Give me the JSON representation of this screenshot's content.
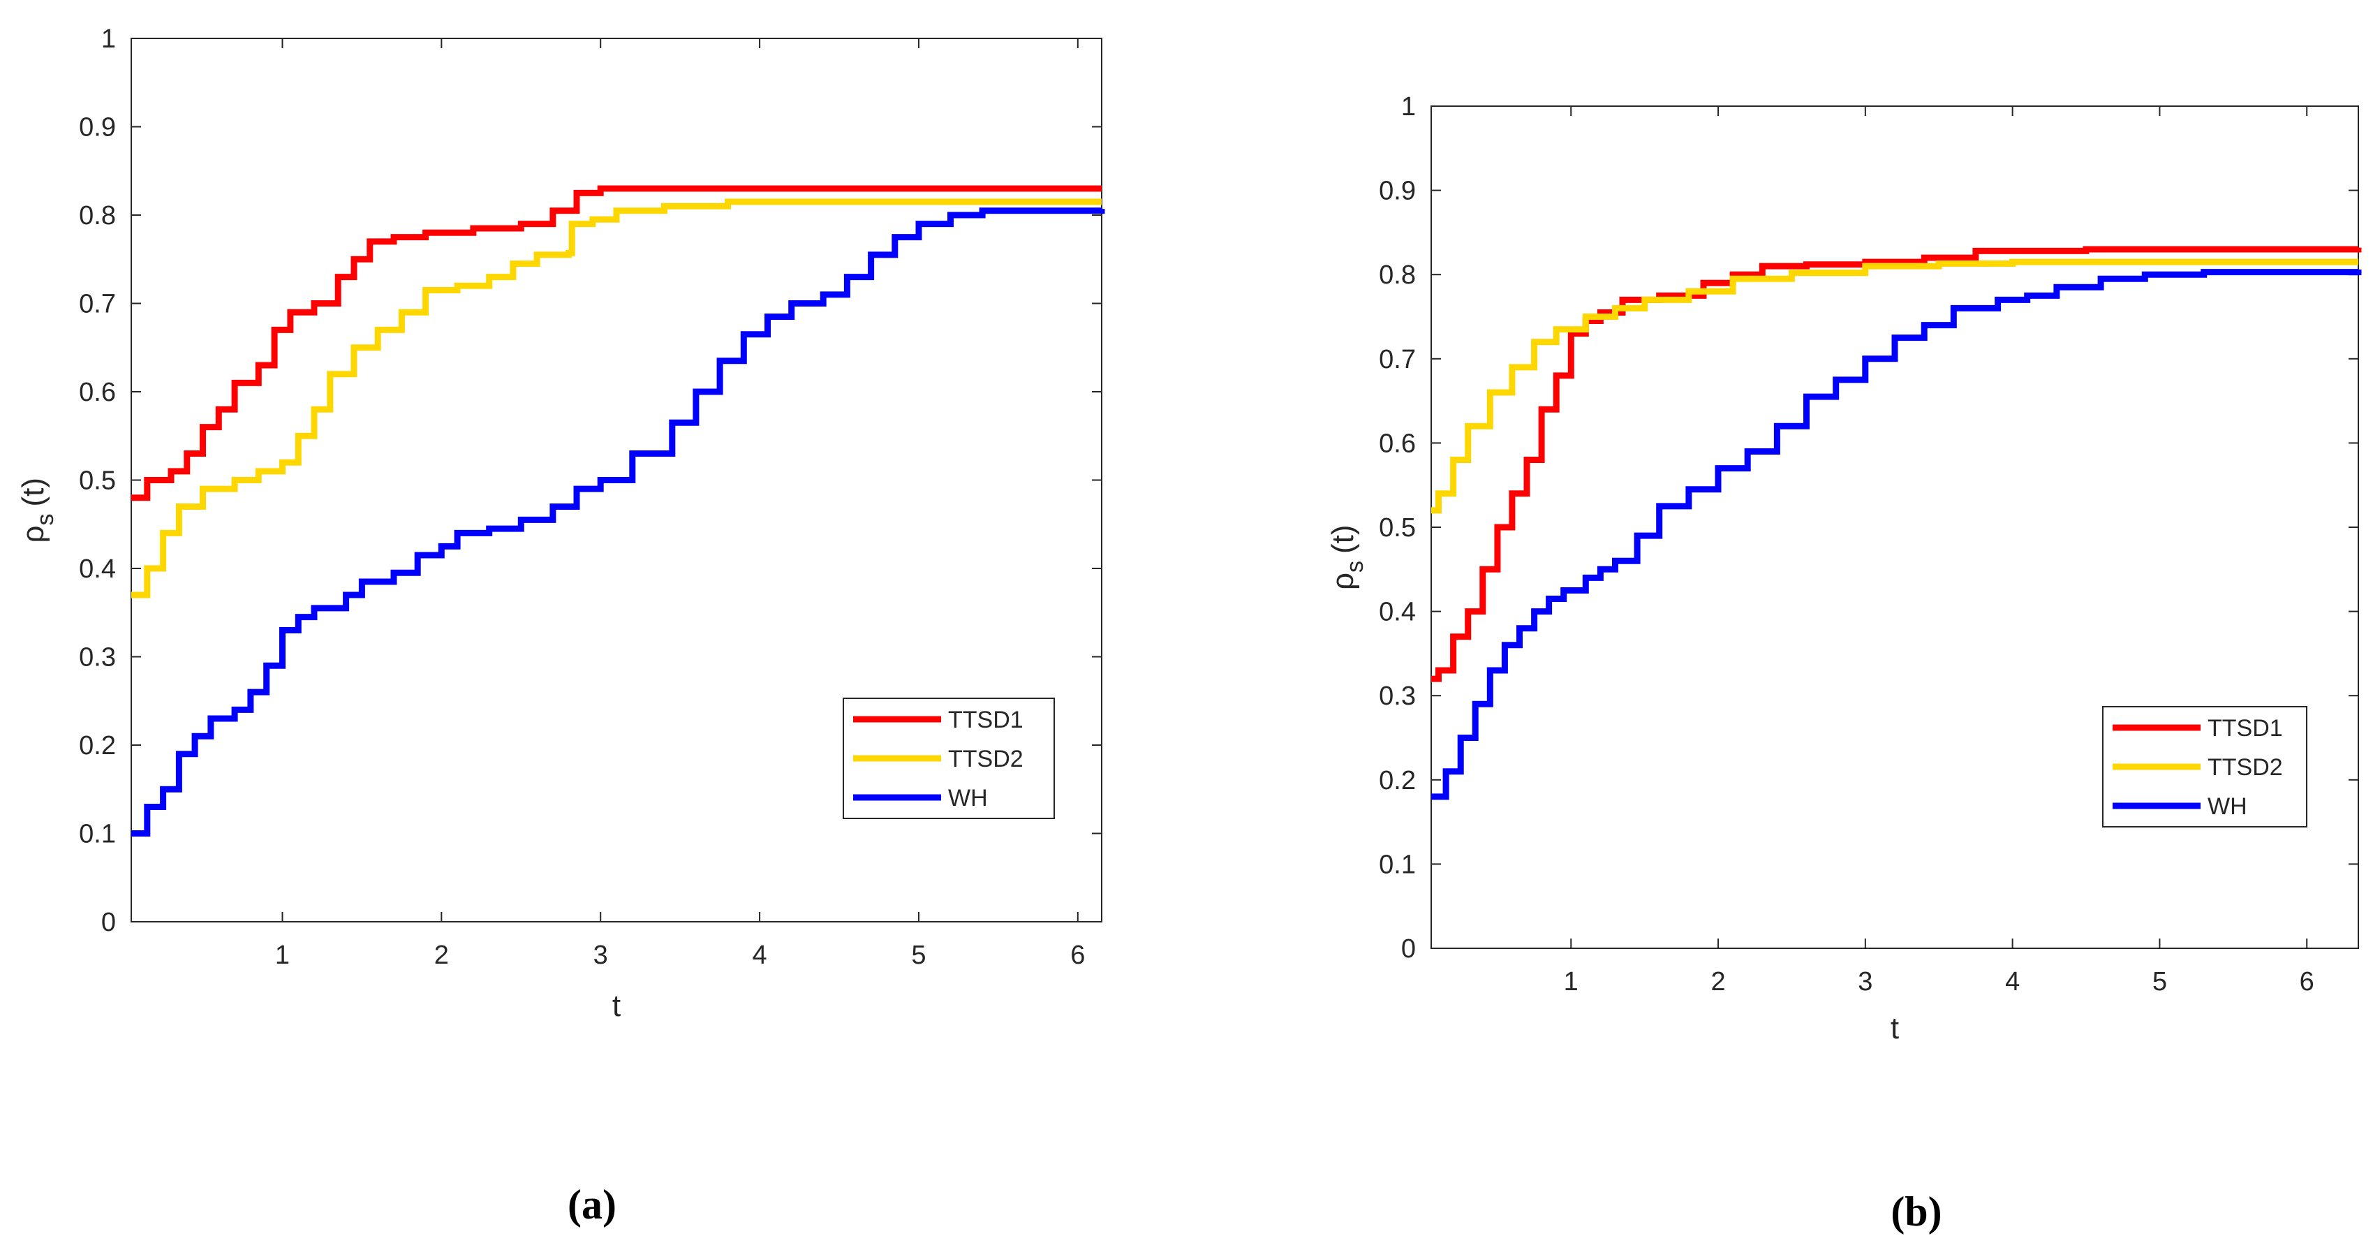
{
  "chart_data": [
    {
      "type": "line",
      "panel": "a",
      "caption": "(a)",
      "xlabel": "t",
      "ylabel": "ρ",
      "ylabel_sub": "s",
      "ylabel_arg": "(t)",
      "xlim": [
        0.05,
        6.15
      ],
      "ylim": [
        0,
        1
      ],
      "xticks": [
        "1",
        "2",
        "3",
        "4",
        "5",
        "6"
      ],
      "yticks": [
        "0",
        "0.1",
        "0.2",
        "0.3",
        "0.4",
        "0.5",
        "0.6",
        "0.7",
        "0.8",
        "0.9",
        "1"
      ],
      "legend_position": "lower-right",
      "series": [
        {
          "name": "TTSD1",
          "color": "#ff0000",
          "points": [
            [
              0.05,
              0.48
            ],
            [
              0.15,
              0.5
            ],
            [
              0.3,
              0.51
            ],
            [
              0.4,
              0.53
            ],
            [
              0.5,
              0.56
            ],
            [
              0.6,
              0.58
            ],
            [
              0.7,
              0.61
            ],
            [
              0.85,
              0.63
            ],
            [
              0.95,
              0.67
            ],
            [
              1.05,
              0.69
            ],
            [
              1.2,
              0.7
            ],
            [
              1.35,
              0.73
            ],
            [
              1.45,
              0.75
            ],
            [
              1.55,
              0.77
            ],
            [
              1.7,
              0.775
            ],
            [
              1.9,
              0.78
            ],
            [
              2.2,
              0.785
            ],
            [
              2.5,
              0.79
            ],
            [
              2.7,
              0.805
            ],
            [
              2.85,
              0.825
            ],
            [
              3.0,
              0.83
            ],
            [
              6.15,
              0.83
            ]
          ]
        },
        {
          "name": "TTSD2",
          "color": "#ffd700",
          "points": [
            [
              0.05,
              0.37
            ],
            [
              0.15,
              0.4
            ],
            [
              0.25,
              0.44
            ],
            [
              0.35,
              0.47
            ],
            [
              0.5,
              0.49
            ],
            [
              0.7,
              0.5
            ],
            [
              0.85,
              0.51
            ],
            [
              1.0,
              0.52
            ],
            [
              1.1,
              0.55
            ],
            [
              1.2,
              0.58
            ],
            [
              1.3,
              0.62
            ],
            [
              1.45,
              0.65
            ],
            [
              1.6,
              0.67
            ],
            [
              1.75,
              0.69
            ],
            [
              1.9,
              0.715
            ],
            [
              2.1,
              0.72
            ],
            [
              2.3,
              0.73
            ],
            [
              2.45,
              0.745
            ],
            [
              2.6,
              0.755
            ],
            [
              2.8,
              0.757
            ],
            [
              2.82,
              0.79
            ],
            [
              2.95,
              0.795
            ],
            [
              3.1,
              0.805
            ],
            [
              3.4,
              0.81
            ],
            [
              3.8,
              0.815
            ],
            [
              6.15,
              0.815
            ]
          ]
        },
        {
          "name": "WH",
          "color": "#0000ff",
          "points": [
            [
              0.05,
              0.1
            ],
            [
              0.15,
              0.13
            ],
            [
              0.25,
              0.15
            ],
            [
              0.35,
              0.19
            ],
            [
              0.45,
              0.21
            ],
            [
              0.55,
              0.23
            ],
            [
              0.7,
              0.24
            ],
            [
              0.8,
              0.26
            ],
            [
              0.9,
              0.29
            ],
            [
              1.0,
              0.33
            ],
            [
              1.1,
              0.345
            ],
            [
              1.2,
              0.355
            ],
            [
              1.4,
              0.37
            ],
            [
              1.5,
              0.385
            ],
            [
              1.7,
              0.395
            ],
            [
              1.85,
              0.415
            ],
            [
              2.0,
              0.425
            ],
            [
              2.1,
              0.44
            ],
            [
              2.3,
              0.445
            ],
            [
              2.5,
              0.455
            ],
            [
              2.7,
              0.47
            ],
            [
              2.85,
              0.49
            ],
            [
              3.0,
              0.5
            ],
            [
              3.2,
              0.53
            ],
            [
              3.45,
              0.565
            ],
            [
              3.6,
              0.6
            ],
            [
              3.75,
              0.635
            ],
            [
              3.9,
              0.665
            ],
            [
              4.05,
              0.685
            ],
            [
              4.2,
              0.7
            ],
            [
              4.4,
              0.71
            ],
            [
              4.55,
              0.73
            ],
            [
              4.7,
              0.755
            ],
            [
              4.85,
              0.775
            ],
            [
              5.0,
              0.79
            ],
            [
              5.2,
              0.8
            ],
            [
              5.4,
              0.805
            ],
            [
              6.15,
              0.807
            ]
          ]
        }
      ]
    },
    {
      "type": "line",
      "panel": "b",
      "caption": "(b)",
      "xlabel": "t",
      "ylabel": "ρ",
      "ylabel_sub": "s",
      "ylabel_arg": "(t)",
      "xlim": [
        0.05,
        6.35
      ],
      "ylim": [
        0,
        1
      ],
      "xticks": [
        "1",
        "2",
        "3",
        "4",
        "5",
        "6"
      ],
      "yticks": [
        "0",
        "0.1",
        "0.2",
        "0.3",
        "0.4",
        "0.5",
        "0.6",
        "0.7",
        "0.8",
        "0.9",
        "1"
      ],
      "legend_position": "lower-right",
      "series": [
        {
          "name": "TTSD1",
          "color": "#ff0000",
          "points": [
            [
              0.05,
              0.32
            ],
            [
              0.1,
              0.33
            ],
            [
              0.2,
              0.37
            ],
            [
              0.3,
              0.4
            ],
            [
              0.4,
              0.45
            ],
            [
              0.5,
              0.5
            ],
            [
              0.6,
              0.54
            ],
            [
              0.7,
              0.58
            ],
            [
              0.8,
              0.64
            ],
            [
              0.9,
              0.68
            ],
            [
              1.0,
              0.73
            ],
            [
              1.1,
              0.745
            ],
            [
              1.2,
              0.755
            ],
            [
              1.35,
              0.77
            ],
            [
              1.6,
              0.775
            ],
            [
              1.9,
              0.79
            ],
            [
              2.1,
              0.8
            ],
            [
              2.3,
              0.81
            ],
            [
              2.6,
              0.812
            ],
            [
              3.0,
              0.815
            ],
            [
              3.4,
              0.82
            ],
            [
              3.75,
              0.828
            ],
            [
              4.5,
              0.83
            ],
            [
              5.5,
              0.83
            ],
            [
              6.35,
              0.832
            ]
          ]
        },
        {
          "name": "TTSD2",
          "color": "#ffd700",
          "points": [
            [
              0.05,
              0.52
            ],
            [
              0.1,
              0.54
            ],
            [
              0.2,
              0.58
            ],
            [
              0.3,
              0.62
            ],
            [
              0.45,
              0.66
            ],
            [
              0.6,
              0.69
            ],
            [
              0.75,
              0.72
            ],
            [
              0.9,
              0.735
            ],
            [
              1.1,
              0.75
            ],
            [
              1.3,
              0.76
            ],
            [
              1.5,
              0.77
            ],
            [
              1.8,
              0.78
            ],
            [
              2.1,
              0.795
            ],
            [
              2.5,
              0.802
            ],
            [
              3.0,
              0.81
            ],
            [
              3.5,
              0.813
            ],
            [
              4.0,
              0.815
            ],
            [
              6.35,
              0.815
            ]
          ]
        },
        {
          "name": "WH",
          "color": "#0000ff",
          "points": [
            [
              0.05,
              0.18
            ],
            [
              0.15,
              0.21
            ],
            [
              0.25,
              0.25
            ],
            [
              0.35,
              0.29
            ],
            [
              0.45,
              0.33
            ],
            [
              0.55,
              0.36
            ],
            [
              0.65,
              0.38
            ],
            [
              0.75,
              0.4
            ],
            [
              0.85,
              0.415
            ],
            [
              0.95,
              0.425
            ],
            [
              1.1,
              0.44
            ],
            [
              1.2,
              0.45
            ],
            [
              1.3,
              0.46
            ],
            [
              1.45,
              0.49
            ],
            [
              1.6,
              0.525
            ],
            [
              1.8,
              0.545
            ],
            [
              2.0,
              0.57
            ],
            [
              2.2,
              0.59
            ],
            [
              2.4,
              0.62
            ],
            [
              2.6,
              0.655
            ],
            [
              2.8,
              0.675
            ],
            [
              3.0,
              0.7
            ],
            [
              3.2,
              0.725
            ],
            [
              3.4,
              0.74
            ],
            [
              3.6,
              0.76
            ],
            [
              3.9,
              0.77
            ],
            [
              4.1,
              0.775
            ],
            [
              4.3,
              0.785
            ],
            [
              4.6,
              0.795
            ],
            [
              4.9,
              0.8
            ],
            [
              5.3,
              0.803
            ],
            [
              6.35,
              0.806
            ]
          ]
        }
      ]
    }
  ]
}
